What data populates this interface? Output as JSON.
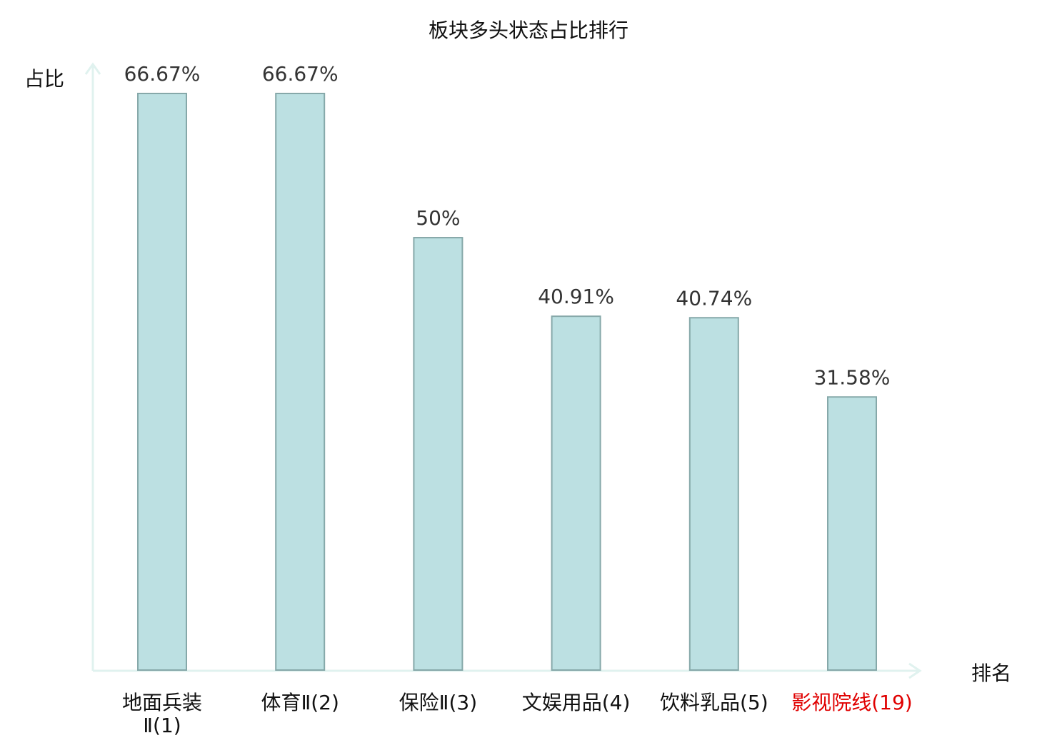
{
  "chart_data": {
    "type": "bar",
    "title": "板块多头状态占比排行",
    "xlabel": "排名",
    "ylabel": "占比",
    "categories": [
      "地面兵装Ⅱ(1)",
      "体育Ⅱ(2)",
      "保险Ⅱ(3)",
      "文娱用品(4)",
      "饮料乳品(5)",
      "影视院线(19)"
    ],
    "category_lines": [
      [
        "地面兵装",
        "Ⅱ(1)"
      ],
      [
        "体育Ⅱ(2)"
      ],
      [
        "保险Ⅱ(3)"
      ],
      [
        "文娱用品(4)"
      ],
      [
        "饮料乳品(5)"
      ],
      [
        "影视院线(19)"
      ]
    ],
    "values": [
      66.67,
      66.67,
      50,
      40.91,
      40.74,
      31.58
    ],
    "value_labels": [
      "66.67%",
      "66.67%",
      "50%",
      "40.91%",
      "40.74%",
      "31.58%"
    ],
    "highlight_index": 5,
    "ylim": [
      0,
      66.67
    ],
    "grid": false,
    "legend": "none",
    "colors": {
      "bar_fill": "#bce0e2",
      "bar_stroke": "#86a8a9",
      "axis": "#e0f2ef",
      "label_text": "#333333",
      "category_text": "#111111",
      "highlight_text": "#e00000"
    }
  }
}
